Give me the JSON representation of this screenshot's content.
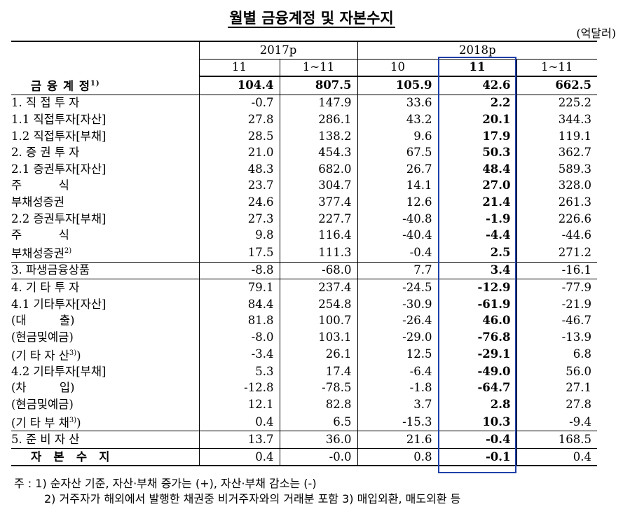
{
  "title": "월별 금융계정 및 자본수지",
  "unit": "(억달러)",
  "header": {
    "group_2017": "2017p",
    "group_2018": "2018p",
    "cols": [
      "11",
      "1~11",
      "10",
      "11",
      "1~11"
    ]
  },
  "rows": [
    {
      "label": "금 융 계 정",
      "sup": "1)",
      "vals": [
        "104.4",
        "807.5",
        "105.9",
        "42.6",
        "662.5"
      ]
    },
    {
      "label": "1. 직 접 투 자",
      "vals": [
        "-0.7",
        "147.9",
        "33.6",
        "2.2",
        "225.2"
      ]
    },
    {
      "label": "1.1 직접투자[자산]",
      "vals": [
        "27.8",
        "286.1",
        "43.2",
        "20.1",
        "344.3"
      ]
    },
    {
      "label": "1.2 직접투자[부채]",
      "vals": [
        "28.5",
        "138.2",
        "9.6",
        "17.9",
        "119.1"
      ]
    },
    {
      "label": "2. 증 권 투 자",
      "vals": [
        "21.0",
        "454.3",
        "67.5",
        "50.3",
        "362.7"
      ]
    },
    {
      "label": "2.1 증권투자[자산]",
      "vals": [
        "48.3",
        "682.0",
        "26.7",
        "48.4",
        "589.3"
      ]
    },
    {
      "label": "주          식",
      "vals": [
        "23.7",
        "304.7",
        "14.1",
        "27.0",
        "328.0"
      ]
    },
    {
      "label": "부채성증권",
      "vals": [
        "24.6",
        "377.4",
        "12.6",
        "21.4",
        "261.3"
      ]
    },
    {
      "label": "2.2 증권투자[부채]",
      "vals": [
        "27.3",
        "227.7",
        "-40.8",
        "-1.9",
        "226.6"
      ]
    },
    {
      "label": "주          식",
      "vals": [
        "9.8",
        "116.4",
        "-40.4",
        "-4.4",
        "-44.6"
      ]
    },
    {
      "label": "부채성증권",
      "sup": "2)",
      "vals": [
        "17.5",
        "111.3",
        "-0.4",
        "2.5",
        "271.2"
      ]
    },
    {
      "label": "3. 파생금융상품",
      "vals": [
        "-8.8",
        "-68.0",
        "7.7",
        "3.4",
        "-16.1"
      ]
    },
    {
      "label": "4. 기 타 투 자",
      "vals": [
        "79.1",
        "237.4",
        "-24.5",
        "-12.9",
        "-77.9"
      ]
    },
    {
      "label": "4.1 기타투자[자산]",
      "vals": [
        "84.4",
        "254.8",
        "-30.9",
        "-61.9",
        "-21.9"
      ]
    },
    {
      "label": "(대         출)",
      "vals": [
        "81.8",
        "100.7",
        "-26.4",
        "46.0",
        "-46.7"
      ]
    },
    {
      "label": "(현금및예금)",
      "vals": [
        "-8.0",
        "103.1",
        "-29.0",
        "-76.8",
        "-13.9"
      ]
    },
    {
      "label": "(기 타 자 산",
      "sup": "3)",
      "tail": ")",
      "vals": [
        "-3.4",
        "26.1",
        "12.5",
        "-29.1",
        "6.8"
      ]
    },
    {
      "label": "4.2 기타투자[부채]",
      "vals": [
        "5.3",
        "17.4",
        "-6.4",
        "-49.0",
        "56.0"
      ]
    },
    {
      "label": "(차         입)",
      "vals": [
        "-12.8",
        "-78.5",
        "-1.8",
        "-64.7",
        "27.1"
      ]
    },
    {
      "label": "(현금및예금)",
      "vals": [
        "12.1",
        "82.8",
        "3.7",
        "2.8",
        "27.8"
      ]
    },
    {
      "label": "(기 타 부 채",
      "sup": "3)",
      "tail": ")",
      "vals": [
        "0.4",
        "6.5",
        "-15.3",
        "10.3",
        "-9.4"
      ]
    },
    {
      "label": "5. 준 비 자 산",
      "vals": [
        "13.7",
        "36.0",
        "21.6",
        "-0.4",
        "168.5"
      ]
    },
    {
      "label": "자   본   수   지",
      "vals": [
        "0.4",
        "-0.0",
        "0.8",
        "-0.1",
        "0.4"
      ]
    }
  ],
  "notes": [
    "주 : 1) 순자산 기준, 자산·부채 증가는 (+), 자산·부채 감소는 (-)",
    "2) 거주자가 해외에서 발행한 채권중 비거주자와의 거래분 포함   3) 매입외환, 매도외환 등"
  ]
}
